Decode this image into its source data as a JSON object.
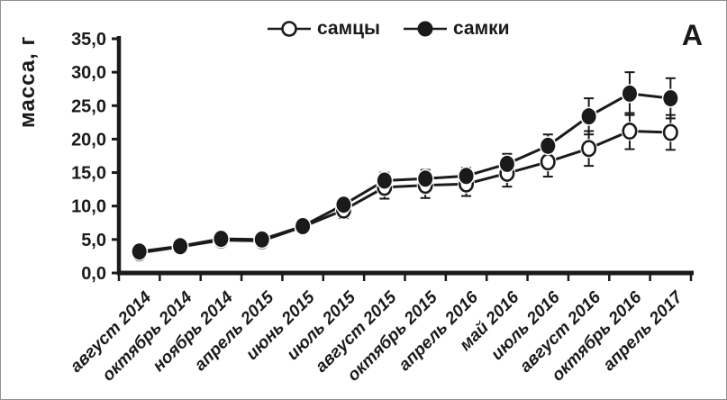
{
  "panel": {
    "corner_label": "А",
    "background": "#ffffff",
    "border_color": "#8f8f8f",
    "ink_color": "#1a1a1a"
  },
  "chart_data": {
    "type": "line",
    "title": "",
    "xlabel": "",
    "ylabel": "масса, г",
    "ylim": [
      0,
      35
    ],
    "ytick_step": 5,
    "ytick_labels": [
      "0,0",
      "5,0",
      "10,0",
      "15,0",
      "20,0",
      "25,0",
      "30,0",
      "35,0"
    ],
    "grid": false,
    "legend_position": "top-center",
    "error_bars": true,
    "categories": [
      "август 2014",
      "октябрь 2014",
      "ноябрь 2014",
      "апрель 2015",
      "июнь 2015",
      "июль 2015",
      "август 2015",
      "октябрь 2015",
      "апрель 2016",
      "май 2016",
      "июль 2016",
      "август 2016",
      "октябрь 2016",
      "апрель 2017"
    ],
    "series": [
      {
        "name": "самцы",
        "marker": "open-circle",
        "values": [
          3.0,
          3.9,
          4.9,
          4.8,
          6.9,
          9.4,
          12.8,
          13.1,
          13.3,
          14.9,
          16.6,
          18.6,
          21.2,
          21.0
        ],
        "errors": [
          0.3,
          0.4,
          0.5,
          0.5,
          0.5,
          1.2,
          1.7,
          1.9,
          1.8,
          2.0,
          2.2,
          2.6,
          2.7,
          2.6
        ]
      },
      {
        "name": "самки",
        "marker": "filled-circle",
        "values": [
          3.2,
          4.0,
          5.1,
          5.0,
          7.0,
          10.2,
          13.8,
          14.1,
          14.5,
          16.3,
          19.0,
          23.4,
          26.8,
          26.1
        ],
        "errors": [
          0.3,
          0.5,
          0.6,
          0.5,
          0.5,
          0.8,
          1.2,
          1.3,
          1.2,
          1.5,
          1.7,
          2.7,
          3.2,
          3.0
        ]
      }
    ]
  }
}
